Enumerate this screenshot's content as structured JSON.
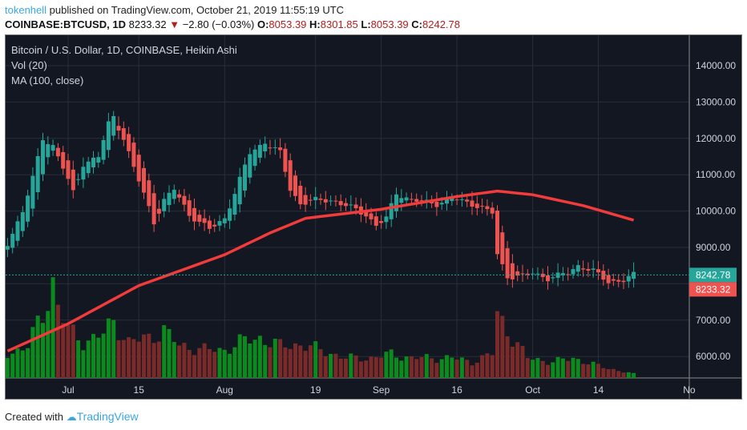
{
  "header": {
    "user": "tokenhell",
    "published": "published on TradingView.com, October 21, 2019 11:55:19 UTC",
    "symbol": "COINBASE:BTCUSD, 1D",
    "last": "8233.32",
    "change": "−2.80 (−0.03%)",
    "o_label": "O:",
    "o": "8053.39",
    "h_label": "H:",
    "h": "8301.85",
    "l_label": "L:",
    "l": "8053.39",
    "c_label": "C:",
    "c": "8242.78"
  },
  "legend": {
    "title": "Bitcoin / U.S. Dollar, 1D, COINBASE, Heikin Ashi",
    "vol": "Vol (20)",
    "ma": "MA (100, close)"
  },
  "footer": {
    "created": "Created with",
    "brand": "TradingView"
  },
  "colors": {
    "up": "#26a69a",
    "down": "#ef5350",
    "ma": "#f23b3b",
    "volUp": "#0b8a1e",
    "volDown": "#7b2a2a"
  },
  "chart_data": {
    "type": "candlestick",
    "style": "Heikin Ashi",
    "ylim": [
      5200,
      14800
    ],
    "y_ticks": [
      "14000.00",
      "13000.00",
      "12000.00",
      "11000.00",
      "10000.00",
      "9000.00",
      "7000.00",
      "6000.00"
    ],
    "x_ticks": [
      {
        "label": "Jul",
        "day": 0
      },
      {
        "label": "15",
        "day": 14
      },
      {
        "label": "Aug",
        "day": 31
      },
      {
        "label": "19",
        "day": 49
      },
      {
        "label": "Sep",
        "day": 62
      },
      {
        "label": "16",
        "day": 77
      },
      {
        "label": "Oct",
        "day": 92
      },
      {
        "label": "14",
        "day": 105
      },
      {
        "label": "No",
        "day": 123
      }
    ],
    "price_labels": [
      {
        "text": "8242.78",
        "value": 8242.78,
        "kind": "up"
      },
      {
        "text": "8233.32",
        "value": 8233.32,
        "kind": "down"
      }
    ],
    "close_keypoints": [
      [
        -12,
        9100
      ],
      [
        -9,
        10000
      ],
      [
        -7,
        10900
      ],
      [
        -5,
        12000
      ],
      [
        -3,
        11800
      ],
      [
        -1,
        11200
      ],
      [
        1,
        10500
      ],
      [
        3,
        11300
      ],
      [
        6,
        11500
      ],
      [
        8,
        12400
      ],
      [
        9,
        12600
      ],
      [
        11,
        12000
      ],
      [
        13,
        11200
      ],
      [
        16,
        10100
      ],
      [
        17,
        9700
      ],
      [
        19,
        10300
      ],
      [
        21,
        10600
      ],
      [
        24,
        9900
      ],
      [
        28,
        9500
      ],
      [
        31,
        9800
      ],
      [
        33,
        10500
      ],
      [
        36,
        11600
      ],
      [
        39,
        11900
      ],
      [
        42,
        11600
      ],
      [
        44,
        10600
      ],
      [
        46,
        10200
      ],
      [
        49,
        10300
      ],
      [
        52,
        10300
      ],
      [
        56,
        10100
      ],
      [
        59,
        9900
      ],
      [
        61,
        9600
      ],
      [
        63,
        9800
      ],
      [
        65,
        10500
      ],
      [
        68,
        10300
      ],
      [
        73,
        10200
      ],
      [
        76,
        10350
      ],
      [
        80,
        10200
      ],
      [
        84,
        9950
      ],
      [
        85,
        8800
      ],
      [
        87,
        8200
      ],
      [
        90,
        8200
      ],
      [
        92,
        8300
      ],
      [
        95,
        8150
      ],
      [
        99,
        8300
      ],
      [
        101,
        8500
      ],
      [
        104,
        8350
      ],
      [
        107,
        8050
      ],
      [
        110,
        8100
      ],
      [
        112,
        8242
      ]
    ],
    "volume_keypoints": [
      [
        -12,
        30
      ],
      [
        -8,
        40
      ],
      [
        -5,
        80
      ],
      [
        -3,
        120
      ],
      [
        -2,
        90
      ],
      [
        0,
        60
      ],
      [
        3,
        45
      ],
      [
        7,
        55
      ],
      [
        9,
        70
      ],
      [
        12,
        45
      ],
      [
        16,
        50
      ],
      [
        19,
        60
      ],
      [
        22,
        40
      ],
      [
        28,
        35
      ],
      [
        31,
        35
      ],
      [
        34,
        45
      ],
      [
        38,
        50
      ],
      [
        42,
        40
      ],
      [
        46,
        42
      ],
      [
        50,
        35
      ],
      [
        55,
        25
      ],
      [
        60,
        25
      ],
      [
        64,
        30
      ],
      [
        68,
        25
      ],
      [
        76,
        25
      ],
      [
        80,
        20
      ],
      [
        84,
        30
      ],
      [
        85,
        80
      ],
      [
        86,
        70
      ],
      [
        88,
        50
      ],
      [
        91,
        25
      ],
      [
        96,
        20
      ],
      [
        100,
        25
      ],
      [
        105,
        15
      ],
      [
        112,
        5
      ]
    ],
    "ma_keypoints": [
      [
        -12,
        6150
      ],
      [
        0,
        6900
      ],
      [
        14,
        7950
      ],
      [
        31,
        8800
      ],
      [
        40,
        9400
      ],
      [
        47,
        9800
      ],
      [
        62,
        10050
      ],
      [
        77,
        10400
      ],
      [
        85,
        10550
      ],
      [
        92,
        10450
      ],
      [
        102,
        10150
      ],
      [
        112,
        9750
      ]
    ]
  }
}
